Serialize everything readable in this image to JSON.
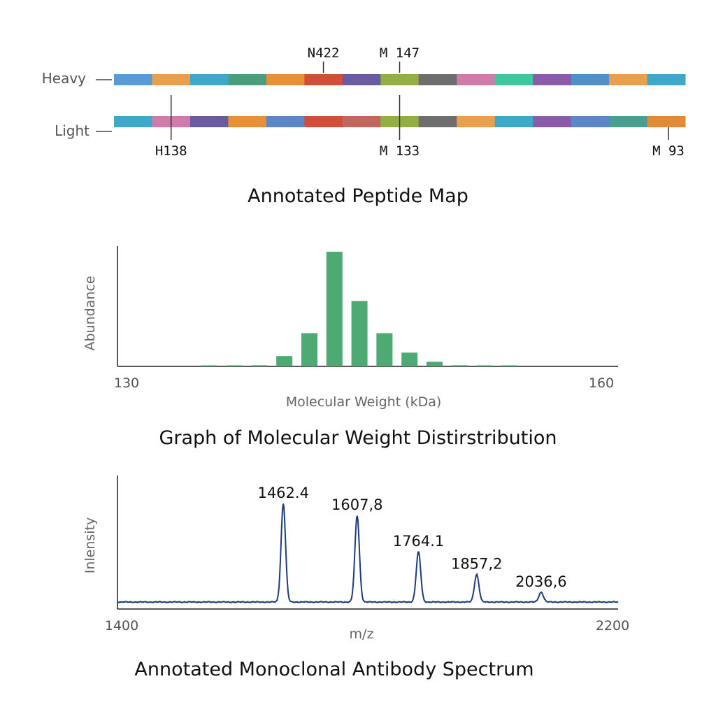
{
  "chart_data": [
    {
      "type": "peptide-map",
      "title": "Annotated Peptide Map",
      "chains": [
        {
          "name": "Heavy",
          "segments": [
            "#5b9bd5",
            "#e8a04e",
            "#3fa8c9",
            "#4a9e7e",
            "#e69138",
            "#d14e3a",
            "#6a5c9e",
            "#93ae45",
            "#6e6e6e",
            "#d07cab",
            "#3fc59f",
            "#8a5ca8",
            "#5090c7",
            "#e8a04e",
            "#3fa8c9"
          ],
          "annotations": [
            {
              "label": "N422",
              "segment": 5,
              "side": "top"
            },
            {
              "label": "M 147",
              "segment": 7,
              "side": "top"
            }
          ]
        },
        {
          "name": "Light",
          "segments": [
            "#3fa8c9",
            "#d07cab",
            "#6a5c9e",
            "#e69138",
            "#5b87c6",
            "#d14e3a",
            "#c0675e",
            "#93ae45",
            "#6e6e6e",
            "#e8a04e",
            "#3fa8c9",
            "#8a5ca8",
            "#5b87c6",
            "#4a9e8e",
            "#e08b38"
          ],
          "annotations": [
            {
              "label": "H138",
              "segment": 1,
              "side": "bottom"
            },
            {
              "label": "M 133",
              "segment": 7,
              "side": "bottom"
            },
            {
              "label": "M 93",
              "segment": 14,
              "side": "bottom"
            }
          ]
        }
      ]
    },
    {
      "type": "bar",
      "title": "Graph of Molecular Weight Distirstribution",
      "xlabel": "Molecular Weight (kDa)",
      "ylabel": "Abundance",
      "xlim": [
        130,
        160
      ],
      "ylim": [
        0,
        100
      ],
      "xticks": [
        "130",
        "160"
      ],
      "color": "#4caa72",
      "x": [
        135.5,
        137,
        138.5,
        140,
        141.5,
        143,
        144.5,
        146,
        147.5,
        149,
        150.5,
        152,
        153.5
      ],
      "values": [
        0.5,
        0.5,
        1,
        9,
        29,
        100,
        57,
        29,
        12,
        4,
        1,
        0.5,
        0.5
      ]
    },
    {
      "type": "line",
      "title": "Annotated Monoclonal Antibody Spectrum",
      "xlabel": "m/z",
      "ylabel": "Inlensity",
      "xlim": [
        1400,
        2200
      ],
      "ylim": [
        0,
        100
      ],
      "xticks": [
        "1400",
        "2200"
      ],
      "color": "#1f3c7a",
      "peaks": [
        {
          "x": 1665,
          "y": 100,
          "label": "1462.4"
        },
        {
          "x": 1783,
          "y": 88,
          "label": "1607,8"
        },
        {
          "x": 1881,
          "y": 51,
          "label": "1764.1"
        },
        {
          "x": 1974,
          "y": 28,
          "label": "1857,2"
        },
        {
          "x": 2077,
          "y": 10,
          "label": "2036,6"
        }
      ]
    }
  ]
}
